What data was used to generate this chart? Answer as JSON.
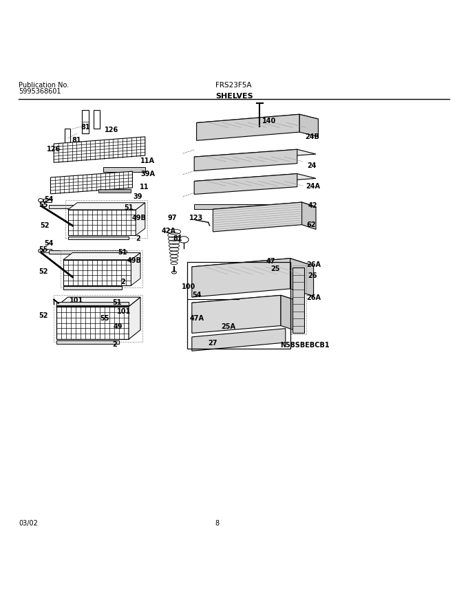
{
  "title_left_line1": "Publication No.",
  "title_left_line2": "5995368601",
  "title_center_line1": "FRS23F5A",
  "title_center_line2": "SHELVES",
  "footer_left": "03/02",
  "footer_center": "8",
  "bg_color": "#ffffff",
  "line_color": "#000000"
}
